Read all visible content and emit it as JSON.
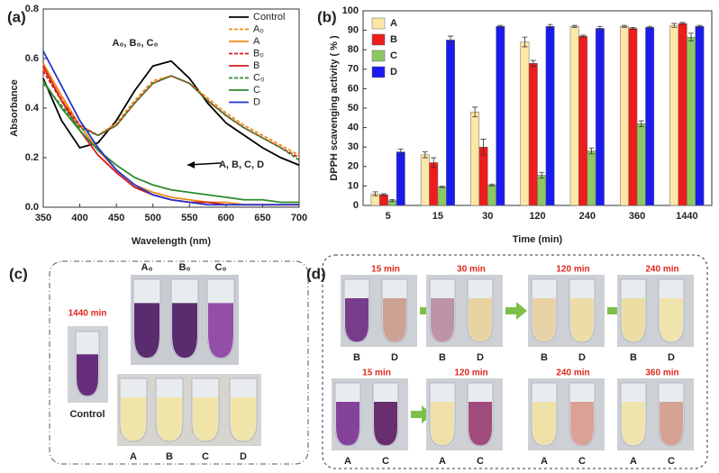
{
  "chart_data": [
    {
      "type": "line",
      "label": "(a)",
      "xlabel": "Wavelength (nm)",
      "ylabel": "Absorbance",
      "x": [
        350,
        375,
        400,
        425,
        450,
        475,
        500,
        525,
        550,
        575,
        600,
        625,
        650,
        675,
        700
      ],
      "xlim": [
        350,
        700
      ],
      "xticks": [
        350,
        400,
        450,
        500,
        550,
        600,
        650,
        700
      ],
      "ylim": [
        0,
        0.8
      ],
      "yticks": [
        {
          "value": 0,
          "label": "0.0"
        },
        0.2,
        0.4,
        0.6,
        0.8
      ],
      "legend": "upper right",
      "annotations": [
        "A₀, B₀, C₀",
        "A, B, C, D"
      ],
      "series": [
        {
          "name": "Control",
          "color": "#000000",
          "dashed": false,
          "values": [
            0.52,
            0.35,
            0.24,
            0.26,
            0.35,
            0.47,
            0.57,
            0.59,
            0.52,
            0.42,
            0.34,
            0.29,
            0.24,
            0.2,
            0.17
          ]
        },
        {
          "name": "A₀",
          "color": "#f28a1e",
          "dashed": true,
          "values": [
            0.56,
            0.44,
            0.33,
            0.29,
            0.34,
            0.43,
            0.51,
            0.53,
            0.5,
            0.44,
            0.38,
            0.33,
            0.29,
            0.25,
            0.21
          ]
        },
        {
          "name": "A",
          "color": "#f28a1e",
          "dashed": false,
          "values": [
            0.58,
            0.45,
            0.33,
            0.23,
            0.15,
            0.09,
            0.06,
            0.04,
            0.03,
            0.02,
            0.02,
            0.01,
            0.01,
            0.01,
            0.01
          ]
        },
        {
          "name": "B₀",
          "color": "#d7191c",
          "dashed": true,
          "values": [
            0.55,
            0.43,
            0.33,
            0.29,
            0.33,
            0.42,
            0.5,
            0.53,
            0.5,
            0.43,
            0.37,
            0.32,
            0.28,
            0.24,
            0.2
          ]
        },
        {
          "name": "B",
          "color": "#d7191c",
          "dashed": false,
          "values": [
            0.57,
            0.43,
            0.31,
            0.21,
            0.14,
            0.08,
            0.05,
            0.03,
            0.02,
            0.02,
            0.01,
            0.01,
            0.01,
            0.01,
            0.01
          ]
        },
        {
          "name": "C₀",
          "color": "#2e8b2e",
          "dashed": true,
          "values": [
            0.5,
            0.41,
            0.32,
            0.29,
            0.33,
            0.42,
            0.5,
            0.53,
            0.5,
            0.43,
            0.37,
            0.32,
            0.28,
            0.24,
            0.19
          ]
        },
        {
          "name": "C",
          "color": "#2e8b2e",
          "dashed": false,
          "values": [
            0.51,
            0.4,
            0.31,
            0.23,
            0.17,
            0.12,
            0.09,
            0.07,
            0.06,
            0.05,
            0.04,
            0.03,
            0.03,
            0.02,
            0.02
          ]
        },
        {
          "name": "D",
          "color": "#2233cc",
          "dashed": false,
          "values": [
            0.63,
            0.49,
            0.35,
            0.24,
            0.15,
            0.09,
            0.05,
            0.03,
            0.02,
            0.01,
            0.01,
            0.01,
            0.01,
            0.01,
            0.01
          ]
        }
      ]
    },
    {
      "type": "bar",
      "label": "(b)",
      "xlabel": "Time (min)",
      "ylabel": "DPPH scavenging activity ( % )",
      "categories": [
        "5",
        "15",
        "30",
        "120",
        "240",
        "360",
        "1440"
      ],
      "ylim": [
        0,
        100
      ],
      "yticks": [
        0,
        10,
        20,
        30,
        40,
        50,
        60,
        70,
        80,
        90,
        100
      ],
      "legend": "upper left",
      "series": [
        {
          "name": "A",
          "color": "#fde7a6",
          "values": [
            6,
            26,
            48,
            84,
            92,
            92,
            92.5
          ],
          "errors": [
            1,
            1.5,
            2.5,
            2.5,
            0.5,
            0.5,
            1
          ]
        },
        {
          "name": "B",
          "color": "#ee1c1c",
          "values": [
            5.5,
            22,
            30,
            73,
            87,
            91,
            93.5
          ],
          "errors": [
            0.5,
            2.5,
            4,
            1.5,
            0.5,
            0.5,
            0.5
          ]
        },
        {
          "name": "C",
          "color": "#8cc863",
          "values": [
            2.5,
            9.5,
            10.5,
            15.5,
            28,
            42,
            86.5
          ],
          "errors": [
            0.5,
            0.3,
            0.5,
            1.5,
            1.5,
            1.5,
            2
          ]
        },
        {
          "name": "D",
          "color": "#1a1aee",
          "values": [
            27.5,
            85,
            92,
            92,
            91,
            91.5,
            92
          ],
          "errors": [
            1.5,
            2,
            0.5,
            1,
            1,
            0.5,
            0.5
          ]
        }
      ]
    }
  ],
  "panel_c": {
    "label": "(c)",
    "time": "1440 min",
    "control": "Control",
    "top_labels": [
      "A₀",
      "B₀",
      "C₀"
    ],
    "bottom_labels": [
      "A",
      "B",
      "C",
      "D"
    ]
  },
  "panel_d": {
    "label": "(d)",
    "top": [
      {
        "time": "15 min",
        "labels": [
          "B",
          "D"
        ]
      },
      {
        "time": "30 min",
        "labels": [
          "B",
          "D"
        ]
      },
      {
        "time": "120 min",
        "labels": [
          "B",
          "D"
        ]
      },
      {
        "time": "240 min",
        "labels": [
          "B",
          "D"
        ]
      }
    ],
    "bottom": [
      {
        "time": "15 min",
        "labels": [
          "A",
          "C"
        ]
      },
      {
        "time": "120 min",
        "labels": [
          "A",
          "C"
        ]
      },
      {
        "time": "240 min",
        "labels": [
          "A",
          "C"
        ]
      },
      {
        "time": "360 min",
        "labels": [
          "A",
          "C"
        ]
      }
    ]
  }
}
